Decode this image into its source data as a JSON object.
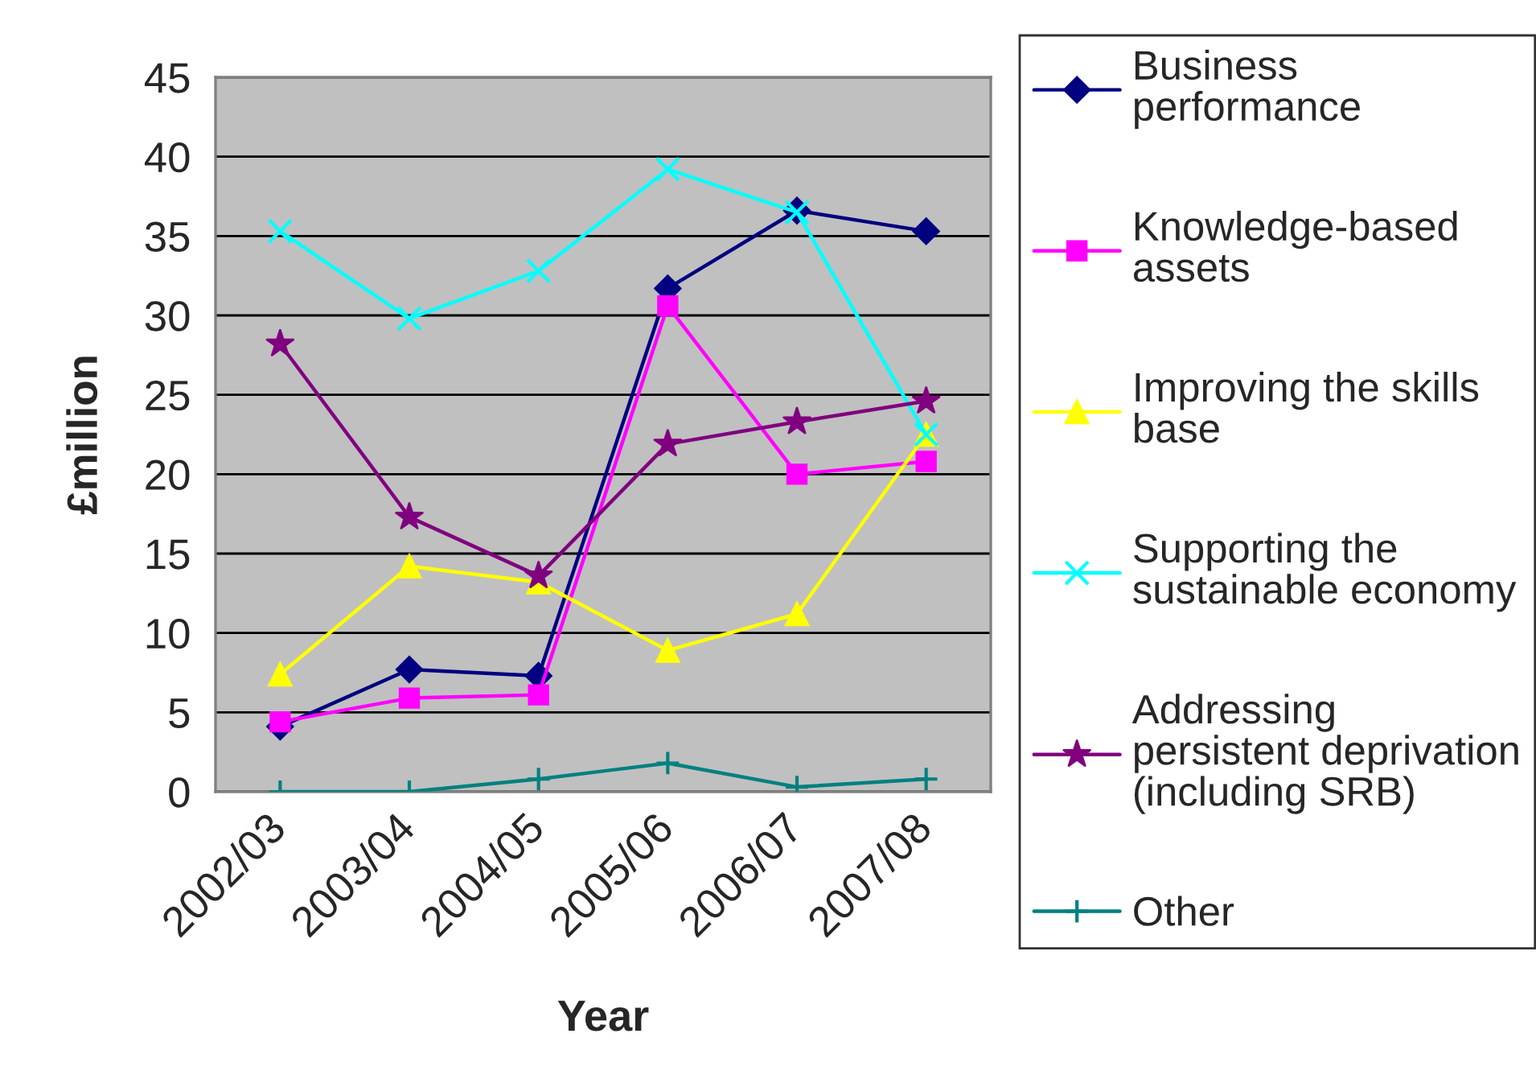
{
  "chart_data": {
    "type": "line",
    "xlabel": "Year",
    "ylabel": "£million",
    "categories": [
      "2002/03",
      "2003/04",
      "2004/05",
      "2005/06",
      "2006/07",
      "2007/08"
    ],
    "ylim": [
      0,
      45
    ],
    "yticks": [
      0,
      5,
      10,
      15,
      20,
      25,
      30,
      35,
      40,
      45
    ],
    "grid": "y",
    "legend": "right",
    "line_style": "solid",
    "series": [
      {
        "name": "Business\nperformance",
        "color": "#000080",
        "marker": "diamond",
        "values": [
          4.1,
          7.7,
          7.3,
          31.7,
          36.6,
          35.3
        ]
      },
      {
        "name": "Knowledge-based\nassets",
        "color": "#ff00ff",
        "marker": "square",
        "values": [
          4.4,
          5.9,
          6.1,
          30.6,
          20.0,
          20.8
        ]
      },
      {
        "name": "Improving the skills\nbase",
        "color": "#ffff00",
        "marker": "triangle",
        "values": [
          7.4,
          14.2,
          13.2,
          8.9,
          11.2,
          22.5
        ]
      },
      {
        "name": "Supporting the\nsustainable economy",
        "color": "#00ffff",
        "marker": "cross",
        "values": [
          35.3,
          29.8,
          32.8,
          39.2,
          36.5,
          22.5
        ]
      },
      {
        "name": "Addressing\npersistent deprivation\n(including SRB)",
        "color": "#800080",
        "marker": "star",
        "values": [
          28.2,
          17.3,
          13.6,
          21.9,
          23.3,
          24.6
        ]
      },
      {
        "name": "Other",
        "color": "#008080",
        "marker": "plus",
        "values": [
          0,
          0,
          0.8,
          1.8,
          0.3,
          0.8
        ]
      }
    ]
  }
}
